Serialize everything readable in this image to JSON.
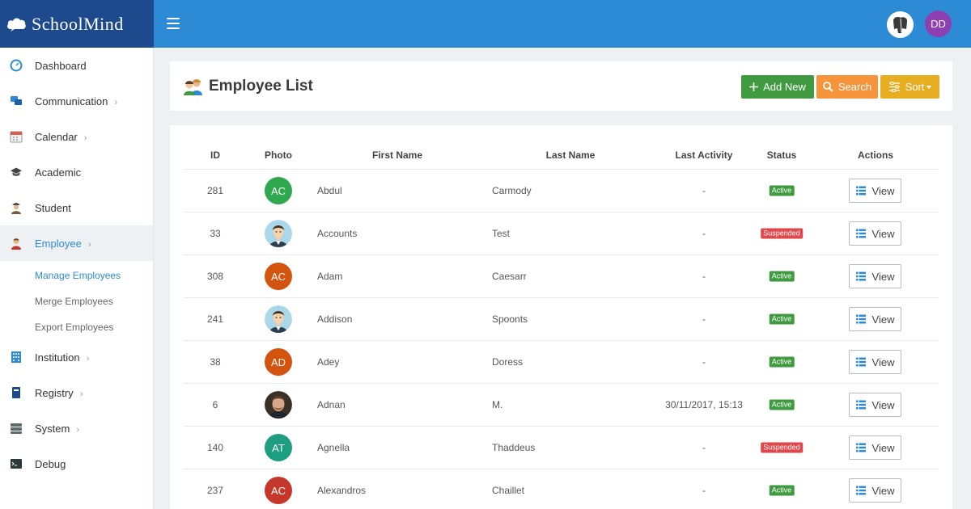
{
  "app": {
    "brand": "SchoolMind",
    "user_initials": "DD"
  },
  "icons": {
    "brand": "cloud-icon",
    "menu": "hamburger-menu-icon",
    "page": "employees-icon",
    "add": "plus-icon",
    "search": "magnifier-icon",
    "sort": "sliders-icon",
    "view": "list-icon"
  },
  "sidebar": {
    "items": [
      {
        "id": "dashboard",
        "label": "Dashboard",
        "icon": "dashboard-icon",
        "chevron": false
      },
      {
        "id": "communication",
        "label": "Communication",
        "icon": "chat-icon",
        "chevron": true
      },
      {
        "id": "calendar",
        "label": "Calendar",
        "icon": "calendar-icon",
        "chevron": true
      },
      {
        "id": "academic",
        "label": "Academic",
        "icon": "graduation-cap-icon",
        "chevron": false
      },
      {
        "id": "student",
        "label": "Student",
        "icon": "student-icon",
        "chevron": false
      },
      {
        "id": "employee",
        "label": "Employee",
        "icon": "employee-icon",
        "chevron": true,
        "active": true
      },
      {
        "id": "institution",
        "label": "Institution",
        "icon": "building-icon",
        "chevron": true
      },
      {
        "id": "registry",
        "label": "Registry",
        "icon": "book-icon",
        "chevron": true
      },
      {
        "id": "system",
        "label": "System",
        "icon": "server-icon",
        "chevron": true
      },
      {
        "id": "debug",
        "label": "Debug",
        "icon": "terminal-icon",
        "chevron": false
      }
    ],
    "employee_subitems": [
      {
        "label": "Manage Employees",
        "active": true
      },
      {
        "label": "Merge Employees"
      },
      {
        "label": "Export Employees"
      }
    ],
    "chevron_glyph": "›"
  },
  "page": {
    "title": "Employee List",
    "buttons": {
      "add": "Add New",
      "search": "Search",
      "sort": "Sort"
    }
  },
  "table": {
    "columns": [
      "ID",
      "Photo",
      "First Name",
      "Last Name",
      "Last Activity",
      "Status",
      "Actions"
    ],
    "view_label": "View",
    "rows": [
      {
        "id": "281",
        "photo": {
          "type": "initials",
          "text": "AC",
          "color": "#2fa84f"
        },
        "first_name": "Abdul",
        "last_name": "Carmody",
        "last_activity": "-",
        "status": "Active"
      },
      {
        "id": "33",
        "photo": {
          "type": "image",
          "image": "cartoon-man-avatar"
        },
        "first_name": "Accounts",
        "last_name": "Test",
        "last_activity": "-",
        "status": "Suspended"
      },
      {
        "id": "308",
        "photo": {
          "type": "initials",
          "text": "AC",
          "color": "#d3540f"
        },
        "first_name": "Adam",
        "last_name": "Caesarr",
        "last_activity": "-",
        "status": "Active"
      },
      {
        "id": "241",
        "photo": {
          "type": "image",
          "image": "cartoon-man-avatar"
        },
        "first_name": "Addison",
        "last_name": "Spoonts",
        "last_activity": "-",
        "status": "Active"
      },
      {
        "id": "38",
        "photo": {
          "type": "initials",
          "text": "AD",
          "color": "#d3540f"
        },
        "first_name": "Adey",
        "last_name": "Doress",
        "last_activity": "-",
        "status": "Active"
      },
      {
        "id": "6",
        "photo": {
          "type": "image",
          "image": "photo-man-avatar"
        },
        "first_name": "Adnan",
        "last_name": "M.",
        "last_activity": "30/11/2017, 15:13",
        "status": "Active"
      },
      {
        "id": "140",
        "photo": {
          "type": "initials",
          "text": "AT",
          "color": "#1e9e80"
        },
        "first_name": "Agnella",
        "last_name": "Thaddeus",
        "last_activity": "-",
        "status": "Suspended"
      },
      {
        "id": "237",
        "photo": {
          "type": "initials",
          "text": "AC",
          "color": "#c6372b"
        },
        "first_name": "Alexandros",
        "last_name": "Chaillet",
        "last_activity": "-",
        "status": "Active"
      }
    ]
  },
  "colors": {
    "header": "#2c8bd4",
    "brand_bg": "#1d4a8d",
    "active_badge": "#3f9a40",
    "suspended_badge": "#e0474a",
    "user_avatar": "#8e3fb2"
  }
}
